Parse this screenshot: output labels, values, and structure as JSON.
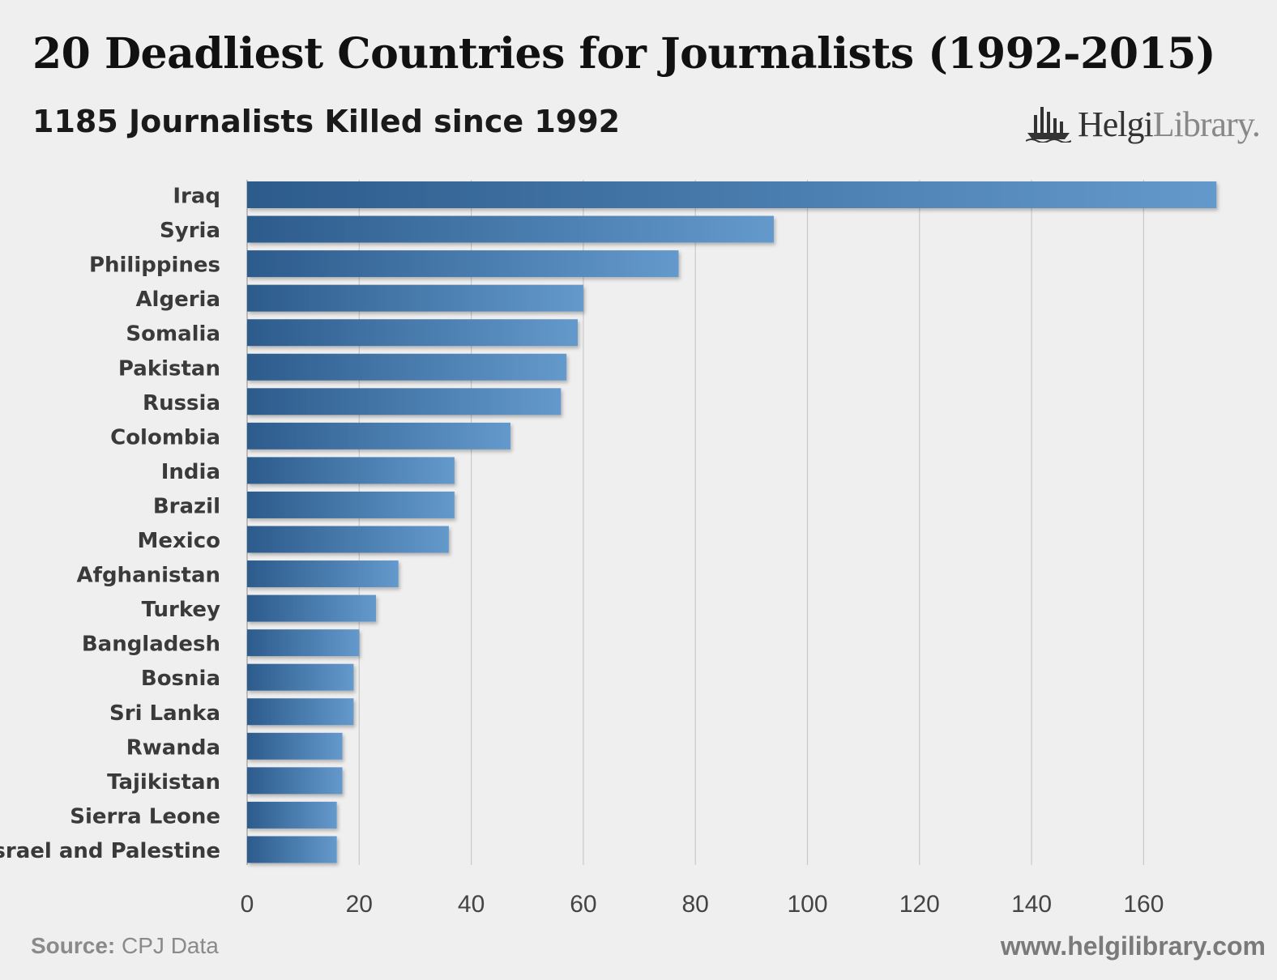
{
  "header": {
    "title": "20 Deadliest Countries for Journalists (1992-2015)",
    "subtitle": "1185 Journalists Killed since 1992",
    "logo_text_bold": "Helgi",
    "logo_text_light": "Library.",
    "logo_icon": "bar-chart-ship-icon"
  },
  "footer": {
    "source_label": "Source:",
    "source_value": " CPJ Data",
    "website": "www.helgilibrary.com"
  },
  "colors": {
    "background": "#efefef",
    "bar_start": "#2c5b8c",
    "bar_end": "#6499cc",
    "grid": "#c8c8c8",
    "axis_text": "#444444"
  },
  "chart_data": {
    "type": "bar",
    "orientation": "horizontal",
    "categories": [
      "Iraq",
      "Syria",
      "Philippines",
      "Algeria",
      "Somalia",
      "Pakistan",
      "Russia",
      "Colombia",
      "India",
      "Brazil",
      "Mexico",
      "Afghanistan",
      "Turkey",
      "Bangladesh",
      "Bosnia",
      "Sri Lanka",
      "Rwanda",
      "Tajikistan",
      "Sierra Leone",
      "Israel and Palestine"
    ],
    "values": [
      173,
      94,
      77,
      60,
      59,
      57,
      56,
      47,
      37,
      37,
      36,
      27,
      23,
      20,
      19,
      19,
      17,
      17,
      16,
      16
    ],
    "xlim": [
      0,
      180
    ],
    "xticks": [
      0,
      20,
      40,
      60,
      80,
      100,
      120,
      140,
      160
    ],
    "grid": true,
    "legend": "none"
  }
}
